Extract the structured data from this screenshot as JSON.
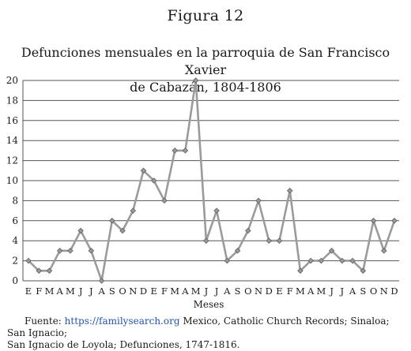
{
  "figure_label": "Figura 12",
  "source": {
    "prefix": "Fuente: ",
    "link_text": "https://familysearch.org",
    "line1_rest": " Mexico, Catholic Church Records; Sinaloa; San Ignacio;",
    "line2": "San Ignacio de Loyola; Defunciones, 1747-1816."
  },
  "colors": {
    "line": "#9b9b9b",
    "marker_fill": "#9a9a9a",
    "marker_stroke": "#5e5e5e",
    "grid": "#555555"
  },
  "chart_data": {
    "type": "line",
    "title_line1": "Defunciones mensuales en la parroquia de San Francisco Xavier",
    "title_line2": "de Cabazán, 1804-1806",
    "xlabel": "Meses",
    "ylabel": "",
    "ylim": [
      0,
      20
    ],
    "yticks": [
      0,
      2,
      4,
      6,
      8,
      10,
      12,
      14,
      16,
      18,
      20
    ],
    "grid": "horizontal",
    "legend": "none",
    "categories": [
      "E",
      "F",
      "M",
      "A",
      "M",
      "J",
      "J",
      "A",
      "S",
      "O",
      "N",
      "D",
      "E",
      "F",
      "M",
      "A",
      "M",
      "J",
      "J",
      "A",
      "S",
      "O",
      "N",
      "D",
      "E",
      "F",
      "M",
      "A",
      "M",
      "J",
      "J",
      "A",
      "S",
      "O",
      "N",
      "D"
    ],
    "values": [
      2,
      1,
      1,
      3,
      3,
      5,
      3,
      0,
      6,
      5,
      7,
      11,
      10,
      8,
      13,
      13,
      20,
      4,
      7,
      2,
      3,
      5,
      8,
      4,
      4,
      9,
      1,
      2,
      2,
      3,
      2,
      2,
      1,
      6,
      3,
      6
    ]
  }
}
